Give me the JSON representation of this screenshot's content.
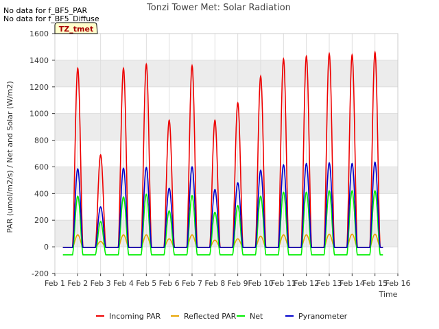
{
  "notes": [
    "No data for f_BF5_PAR",
    "No data for f_BF5_Diffuse"
  ],
  "site_tag": "TZ_tmet",
  "colors": {
    "band": "#ececec",
    "grid": "#dddddd",
    "tag_fill": "#ffffcc"
  },
  "chart_data": {
    "type": "line",
    "title": "Tonzi Tower Met: Solar Radiation",
    "xlabel": "Time",
    "ylabel": "PAR (umol/m2/s) / Net and Solar (W/m2)",
    "xlim": [
      1,
      16
    ],
    "ylim": [
      -200,
      1600
    ],
    "x_ticks": [
      1,
      2,
      3,
      4,
      5,
      6,
      7,
      8,
      9,
      10,
      11,
      12,
      13,
      14,
      15,
      16
    ],
    "x_tick_labels": [
      "Feb 1",
      "Feb 2",
      "Feb 3",
      "Feb 4",
      "Feb 5",
      "Feb 6",
      "Feb 7",
      "Feb 8",
      "Feb 9",
      "Feb 10",
      "Feb 11",
      "Feb 12",
      "Feb 13",
      "Feb 14",
      "Feb 15",
      "Feb 16"
    ],
    "y_ticks": [
      -200,
      0,
      200,
      400,
      600,
      800,
      1000,
      1200,
      1400,
      1600
    ],
    "y_tick_labels": [
      "-200",
      "0",
      "200",
      "400",
      "600",
      "800",
      "1000",
      "1200",
      "1400",
      "1600"
    ],
    "grid": true,
    "legend_position": "bottom",
    "data_start": 1.35,
    "data_end": 15.35,
    "days": [
      2,
      3,
      4,
      5,
      6,
      7,
      8,
      9,
      10,
      11,
      12,
      13,
      14,
      15
    ],
    "series": [
      {
        "name": "Incoming PAR",
        "color": "#ee0000",
        "night": -5,
        "daily_peak": [
          1340,
          690,
          1340,
          1370,
          950,
          1360,
          950,
          1080,
          1280,
          1410,
          1430,
          1450,
          1440,
          1460
        ]
      },
      {
        "name": "Reflected PAR",
        "color": "#e8a400",
        "night": -5,
        "daily_peak": [
          90,
          40,
          90,
          90,
          60,
          90,
          50,
          60,
          80,
          90,
          90,
          95,
          95,
          95
        ]
      },
      {
        "name": "Net",
        "color": "#00ee00",
        "night": -60,
        "daily_peak": [
          380,
          190,
          375,
          395,
          270,
          385,
          260,
          310,
          380,
          410,
          410,
          420,
          420,
          420
        ]
      },
      {
        "name": "Pyranometer",
        "color": "#0000cc",
        "night": -5,
        "daily_peak": [
          585,
          300,
          590,
          595,
          440,
          600,
          430,
          480,
          575,
          615,
          625,
          630,
          625,
          635
        ]
      }
    ]
  }
}
